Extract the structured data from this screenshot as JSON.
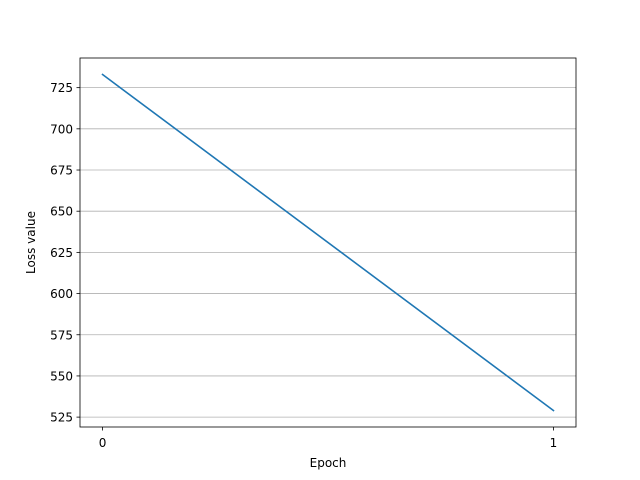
{
  "chart_data": {
    "type": "line",
    "title": "",
    "xlabel": "Epoch",
    "ylabel": "Loss value",
    "x": [
      0,
      1
    ],
    "x_ticks": [
      "0",
      "1"
    ],
    "y_ticks": [
      "525",
      "550",
      "575",
      "600",
      "625",
      "650",
      "675",
      "700",
      "725"
    ],
    "xlim": [
      -0.05,
      1.05
    ],
    "ylim": [
      519,
      743
    ],
    "grid": "horizontal",
    "series": [
      {
        "values": [
          733,
          529
        ],
        "color": "#1f77b4"
      }
    ],
    "colors": {
      "grid": "#b0b0b0",
      "axes": "#000000"
    }
  }
}
